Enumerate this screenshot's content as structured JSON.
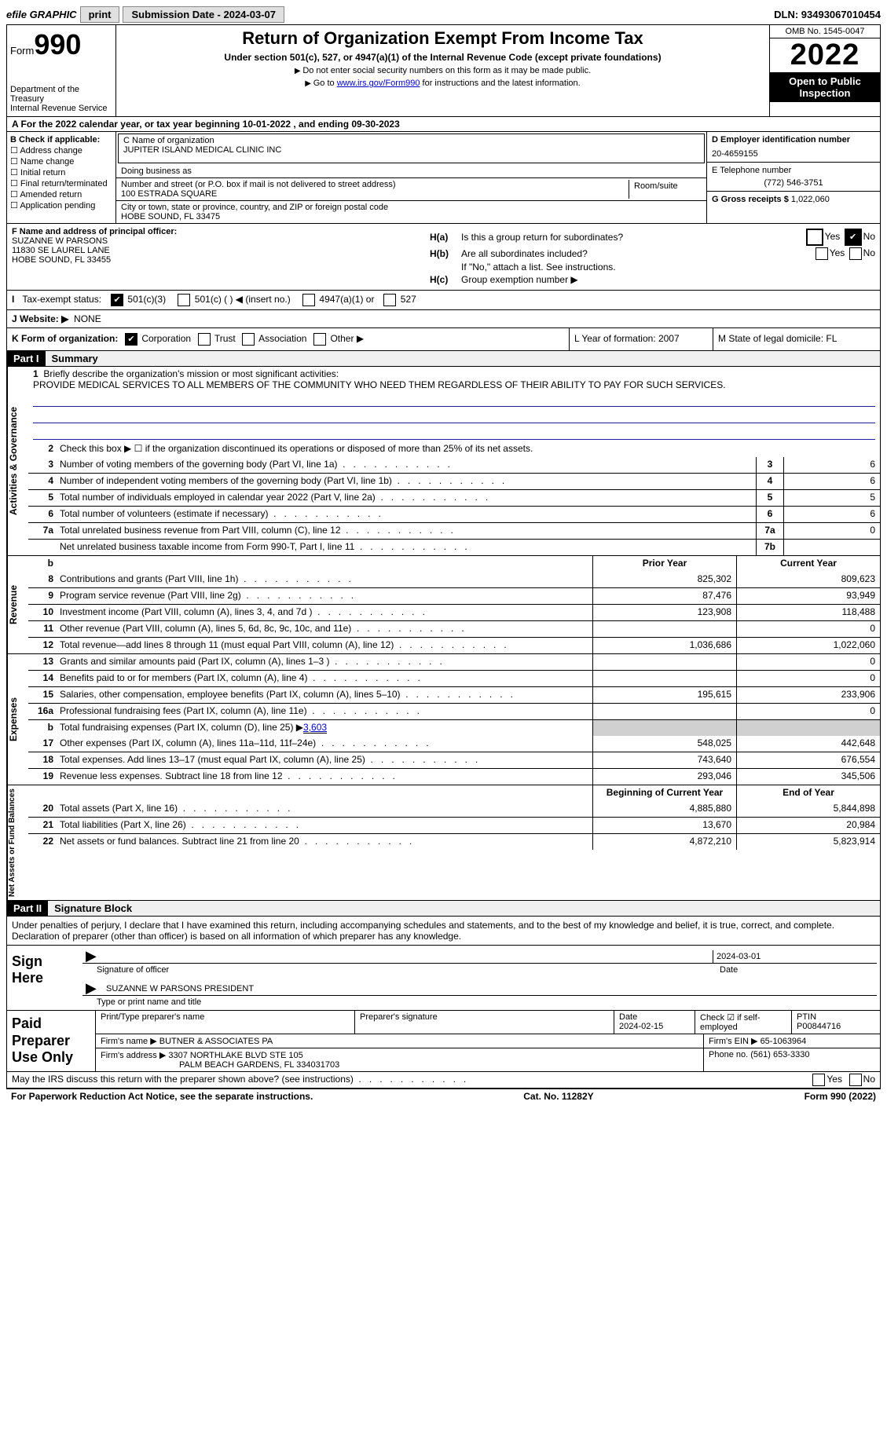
{
  "topbar": {
    "efile": "efile GRAPHIC",
    "print": "print",
    "submission": "Submission Date - 2024-03-07",
    "dln": "DLN: 93493067010454"
  },
  "header": {
    "form": "Form",
    "form_no": "990",
    "dept": "Department of the Treasury",
    "irs": "Internal Revenue Service",
    "title": "Return of Organization Exempt From Income Tax",
    "subtitle": "Under section 501(c), 527, or 4947(a)(1) of the Internal Revenue Code (except private foundations)",
    "note1": "Do not enter social security numbers on this form as it may be made public.",
    "note2_pre": "Go to ",
    "note2_link": "www.irs.gov/Form990",
    "note2_post": " for instructions and the latest information.",
    "omb": "OMB No. 1545-0047",
    "year": "2022",
    "open": "Open to Public Inspection"
  },
  "row_a": "A For the 2022 calendar year, or tax year beginning 10-01-2022    , and ending 09-30-2023",
  "col_b": {
    "label": "B Check if applicable:",
    "items": [
      "Address change",
      "Name change",
      "Initial return",
      "Final return/terminated",
      "Amended return",
      "Application pending"
    ]
  },
  "col_c": {
    "name_label": "C Name of organization",
    "name": "JUPITER ISLAND MEDICAL CLINIC INC",
    "dba_label": "Doing business as",
    "dba": "",
    "addr_label": "Number and street (or P.O. box if mail is not delivered to street address)",
    "room_label": "Room/suite",
    "addr": "100 ESTRADA SQUARE",
    "city_label": "City or town, state or province, country, and ZIP or foreign postal code",
    "city": "HOBE SOUND, FL  33475"
  },
  "col_d": {
    "ein_label": "D Employer identification number",
    "ein": "20-4659155",
    "phone_label": "E Telephone number",
    "phone": "(772) 546-3751",
    "gross_label": "G Gross receipts $",
    "gross": "1,022,060"
  },
  "col_f": {
    "label": "F Name and address of principal officer:",
    "name": "SUZANNE W PARSONS",
    "addr1": "11830 SE LAUREL LANE",
    "addr2": "HOBE SOUND, FL  33455"
  },
  "col_h": {
    "a_label": "H(a)",
    "a_text": "Is this a group return for subordinates?",
    "b_label": "H(b)",
    "b_text": "Are all subordinates included?",
    "b_note": "If \"No,\" attach a list. See instructions.",
    "c_label": "H(c)",
    "c_text": "Group exemption number ▶",
    "yes": "Yes",
    "no": "No"
  },
  "row_i": {
    "label": "Tax-exempt status:",
    "opts": [
      "501(c)(3)",
      "501(c) (  ) ◀ (insert no.)",
      "4947(a)(1) or",
      "527"
    ]
  },
  "row_j": {
    "label": "J  Website: ▶",
    "val": "NONE"
  },
  "row_k": {
    "label": "K Form of organization:",
    "opts": [
      "Corporation",
      "Trust",
      "Association",
      "Other ▶"
    ],
    "l": "L Year of formation: 2007",
    "m": "M State of legal domicile: FL"
  },
  "part1": {
    "hdr": "Part I",
    "title": "Summary",
    "q1": "Briefly describe the organization's mission or most significant activities:",
    "mission": "PROVIDE MEDICAL SERVICES TO ALL MEMBERS OF THE COMMUNITY WHO NEED THEM REGARDLESS OF THEIR ABILITY TO PAY FOR SUCH SERVICES.",
    "q2": "Check this box ▶ ☐ if the organization discontinued its operations or disposed of more than 25% of its net assets.",
    "side_act": "Activities & Governance",
    "side_rev": "Revenue",
    "side_exp": "Expenses",
    "side_net": "Net Assets or Fund Balances",
    "prior": "Prior Year",
    "current": "Current Year",
    "begin": "Beginning of Current Year",
    "end": "End of Year",
    "rows_gov": [
      {
        "n": "3",
        "d": "Number of voting members of the governing body (Part VI, line 1a)",
        "box": "3",
        "v": "6"
      },
      {
        "n": "4",
        "d": "Number of independent voting members of the governing body (Part VI, line 1b)",
        "box": "4",
        "v": "6"
      },
      {
        "n": "5",
        "d": "Total number of individuals employed in calendar year 2022 (Part V, line 2a)",
        "box": "5",
        "v": "5"
      },
      {
        "n": "6",
        "d": "Total number of volunteers (estimate if necessary)",
        "box": "6",
        "v": "6"
      },
      {
        "n": "7a",
        "d": "Total unrelated business revenue from Part VIII, column (C), line 12",
        "box": "7a",
        "v": "0"
      },
      {
        "n": "",
        "d": "Net unrelated business taxable income from Form 990-T, Part I, line 11",
        "box": "7b",
        "v": ""
      }
    ],
    "rows_rev": [
      {
        "n": "8",
        "d": "Contributions and grants (Part VIII, line 1h)",
        "p": "825,302",
        "c": "809,623"
      },
      {
        "n": "9",
        "d": "Program service revenue (Part VIII, line 2g)",
        "p": "87,476",
        "c": "93,949"
      },
      {
        "n": "10",
        "d": "Investment income (Part VIII, column (A), lines 3, 4, and 7d )",
        "p": "123,908",
        "c": "118,488"
      },
      {
        "n": "11",
        "d": "Other revenue (Part VIII, column (A), lines 5, 6d, 8c, 9c, 10c, and 11e)",
        "p": "",
        "c": "0"
      },
      {
        "n": "12",
        "d": "Total revenue—add lines 8 through 11 (must equal Part VIII, column (A), line 12)",
        "p": "1,036,686",
        "c": "1,022,060"
      }
    ],
    "rows_exp": [
      {
        "n": "13",
        "d": "Grants and similar amounts paid (Part IX, column (A), lines 1–3 )",
        "p": "",
        "c": "0"
      },
      {
        "n": "14",
        "d": "Benefits paid to or for members (Part IX, column (A), line 4)",
        "p": "",
        "c": "0"
      },
      {
        "n": "15",
        "d": "Salaries, other compensation, employee benefits (Part IX, column (A), lines 5–10)",
        "p": "195,615",
        "c": "233,906"
      },
      {
        "n": "16a",
        "d": "Professional fundraising fees (Part IX, column (A), line 11e)",
        "p": "",
        "c": "0"
      }
    ],
    "row16b": {
      "n": "b",
      "d": "Total fundraising expenses (Part IX, column (D), line 25) ▶",
      "link": "3,603"
    },
    "rows_exp2": [
      {
        "n": "17",
        "d": "Other expenses (Part IX, column (A), lines 11a–11d, 11f–24e)",
        "p": "548,025",
        "c": "442,648"
      },
      {
        "n": "18",
        "d": "Total expenses. Add lines 13–17 (must equal Part IX, column (A), line 25)",
        "p": "743,640",
        "c": "676,554"
      },
      {
        "n": "19",
        "d": "Revenue less expenses. Subtract line 18 from line 12",
        "p": "293,046",
        "c": "345,506"
      }
    ],
    "rows_net": [
      {
        "n": "20",
        "d": "Total assets (Part X, line 16)",
        "p": "4,885,880",
        "c": "5,844,898"
      },
      {
        "n": "21",
        "d": "Total liabilities (Part X, line 26)",
        "p": "13,670",
        "c": "20,984"
      },
      {
        "n": "22",
        "d": "Net assets or fund balances. Subtract line 21 from line 20",
        "p": "4,872,210",
        "c": "5,823,914"
      }
    ]
  },
  "part2": {
    "hdr": "Part II",
    "title": "Signature Block",
    "intro": "Under penalties of perjury, I declare that I have examined this return, including accompanying schedules and statements, and to the best of my knowledge and belief, it is true, correct, and complete. Declaration of preparer (other than officer) is based on all information of which preparer has any knowledge.",
    "sign_here": "Sign Here",
    "sig_officer": "Signature of officer",
    "sig_date": "2024-03-01",
    "date_lbl": "Date",
    "officer_name": "SUZANNE W PARSONS  PRESIDENT",
    "type_name": "Type or print name and title",
    "paid": "Paid Preparer Use Only",
    "prep_name_lbl": "Print/Type preparer's name",
    "prep_sig_lbl": "Preparer's signature",
    "prep_date_lbl": "Date",
    "prep_date": "2024-02-15",
    "check_self": "Check ☑ if self-employed",
    "ptin_lbl": "PTIN",
    "ptin": "P00844716",
    "firm_name_lbl": "Firm's name    ▶",
    "firm_name": "BUTNER & ASSOCIATES PA",
    "firm_ein_lbl": "Firm's EIN ▶",
    "firm_ein": "65-1063964",
    "firm_addr_lbl": "Firm's address ▶",
    "firm_addr1": "3307 NORTHLAKE BLVD STE 105",
    "firm_addr2": "PALM BEACH GARDENS, FL  334031703",
    "phone_lbl": "Phone no.",
    "phone": "(561) 653-3330"
  },
  "footer": {
    "discuss": "May the IRS discuss this return with the preparer shown above? (see instructions)",
    "yes": "Yes",
    "no": "No",
    "pra": "For Paperwork Reduction Act Notice, see the separate instructions.",
    "cat": "Cat. No. 11282Y",
    "form": "Form 990 (2022)"
  }
}
